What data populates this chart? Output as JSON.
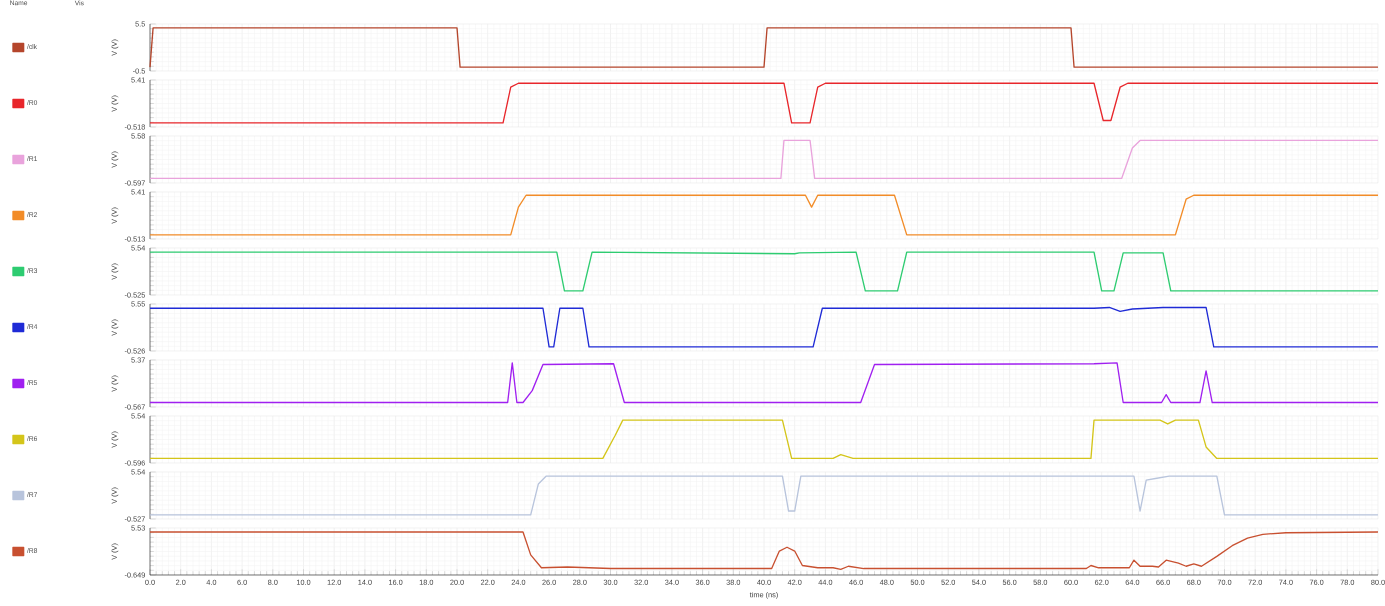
{
  "chart_data": [
    {
      "type": "line",
      "ylabel": "V (V)",
      "legend_title": "Name",
      "annotations": [
        "Vis"
      ],
      "legend": "left",
      "grid": true,
      "tick_labels": "y",
      "xlim": [
        0,
        80
      ],
      "ylim": [
        -0.5,
        5.5
      ],
      "yticks": [
        -0.5,
        5.5
      ],
      "xticks": [
        0,
        2,
        4,
        6,
        8,
        10,
        12,
        14,
        16,
        18,
        20,
        22,
        24,
        26,
        28,
        30,
        32,
        34,
        36,
        38,
        40,
        42,
        44,
        46,
        48,
        50,
        52,
        54,
        56,
        58,
        60,
        62,
        64,
        66,
        68,
        70,
        72,
        74,
        76,
        78,
        80
      ],
      "series": [
        {
          "name": "/clk",
          "color": "#b5462c",
          "x": [
            0,
            0.2,
            20,
            20.2,
            40,
            40.2,
            60,
            60.2,
            80
          ],
          "values": [
            0,
            5,
            5,
            0,
            0,
            5,
            5,
            0,
            0
          ]
        }
      ]
    },
    {
      "type": "line",
      "ylabel": "V (V)",
      "legend": "left",
      "grid": true,
      "tick_labels": "y",
      "xlim": [
        0,
        80
      ],
      "ylim": [
        -0.518,
        5.41
      ],
      "yticks": [
        -0.518,
        5.41
      ],
      "xticks": [
        0,
        2,
        4,
        6,
        8,
        10,
        12,
        14,
        16,
        18,
        20,
        22,
        24,
        26,
        28,
        30,
        32,
        34,
        36,
        38,
        40,
        42,
        44,
        46,
        48,
        50,
        52,
        54,
        56,
        58,
        60,
        62,
        64,
        66,
        68,
        70,
        72,
        74,
        76,
        78,
        80
      ],
      "series": [
        {
          "name": "/R0",
          "color": "#e8262b",
          "x": [
            0,
            23,
            23.5,
            24,
            41.3,
            41.8,
            43,
            43.5,
            44,
            61.5,
            62.1,
            62.6,
            63.2,
            63.7,
            80
          ],
          "values": [
            0,
            0,
            4.5,
            5,
            5,
            0,
            0,
            4.5,
            5,
            5,
            0.3,
            0.3,
            4.5,
            5,
            5
          ]
        }
      ]
    },
    {
      "type": "line",
      "ylabel": "V (V)",
      "legend": "left",
      "grid": true,
      "tick_labels": "y",
      "xlim": [
        0,
        80
      ],
      "ylim": [
        -0.597,
        5.58
      ],
      "yticks": [
        -0.597,
        5.58
      ],
      "xticks": [
        0,
        2,
        4,
        6,
        8,
        10,
        12,
        14,
        16,
        18,
        20,
        22,
        24,
        26,
        28,
        30,
        32,
        34,
        36,
        38,
        40,
        42,
        44,
        46,
        48,
        50,
        52,
        54,
        56,
        58,
        60,
        62,
        64,
        66,
        68,
        70,
        72,
        74,
        76,
        78,
        80
      ],
      "series": [
        {
          "name": "/R1",
          "color": "#e9a3dc",
          "x": [
            0,
            41.1,
            41.3,
            43.0,
            43.3,
            63.3,
            64.0,
            64.5,
            80
          ],
          "values": [
            0,
            0,
            5,
            5,
            0,
            0,
            4,
            5,
            5
          ]
        }
      ]
    },
    {
      "type": "line",
      "ylabel": "V (V)",
      "legend": "left",
      "grid": true,
      "tick_labels": "y",
      "xlim": [
        0,
        80
      ],
      "ylim": [
        -0.513,
        5.41
      ],
      "yticks": [
        -0.513,
        5.41
      ],
      "xticks": [
        0,
        2,
        4,
        6,
        8,
        10,
        12,
        14,
        16,
        18,
        20,
        22,
        24,
        26,
        28,
        30,
        32,
        34,
        36,
        38,
        40,
        42,
        44,
        46,
        48,
        50,
        52,
        54,
        56,
        58,
        60,
        62,
        64,
        66,
        68,
        70,
        72,
        74,
        76,
        78,
        80
      ],
      "series": [
        {
          "name": "/R2",
          "color": "#f28c28",
          "x": [
            0,
            23.5,
            24,
            24.5,
            42.7,
            43.1,
            43.5,
            48.5,
            49.3,
            66.8,
            67.5,
            68,
            80
          ],
          "values": [
            0,
            0,
            3.5,
            5,
            5,
            3.5,
            5,
            5,
            0,
            0,
            4.5,
            5,
            5
          ]
        }
      ]
    },
    {
      "type": "line",
      "ylabel": "V (V)",
      "legend": "left",
      "grid": true,
      "tick_labels": "y",
      "xlim": [
        0,
        80
      ],
      "ylim": [
        -0.525,
        5.54
      ],
      "yticks": [
        -0.525,
        5.54
      ],
      "xticks": [
        0,
        2,
        4,
        6,
        8,
        10,
        12,
        14,
        16,
        18,
        20,
        22,
        24,
        26,
        28,
        30,
        32,
        34,
        36,
        38,
        40,
        42,
        44,
        46,
        48,
        50,
        52,
        54,
        56,
        58,
        60,
        62,
        64,
        66,
        68,
        70,
        72,
        74,
        76,
        78,
        80
      ],
      "series": [
        {
          "name": "/R3",
          "color": "#2ecc71",
          "x": [
            0,
            26.5,
            27,
            28.2,
            28.8,
            42,
            42.3,
            46,
            46.6,
            48.7,
            49.3,
            61.5,
            62,
            62.8,
            63.4,
            66,
            66.5,
            80
          ],
          "values": [
            5,
            5,
            0,
            0,
            5,
            4.8,
            4.9,
            5,
            0,
            0,
            5,
            5,
            0,
            0,
            4.9,
            4.9,
            0,
            0
          ]
        }
      ]
    },
    {
      "type": "line",
      "ylabel": "V (V)",
      "legend": "left",
      "grid": true,
      "tick_labels": "y",
      "xlim": [
        0,
        80
      ],
      "ylim": [
        -0.526,
        5.55
      ],
      "yticks": [
        -0.526,
        5.55
      ],
      "xticks": [
        0,
        2,
        4,
        6,
        8,
        10,
        12,
        14,
        16,
        18,
        20,
        22,
        24,
        26,
        28,
        30,
        32,
        34,
        36,
        38,
        40,
        42,
        44,
        46,
        48,
        50,
        52,
        54,
        56,
        58,
        60,
        62,
        64,
        66,
        68,
        70,
        72,
        74,
        76,
        78,
        80
      ],
      "series": [
        {
          "name": "/R4",
          "color": "#1f2bd6",
          "x": [
            0,
            25.6,
            26,
            26.3,
            26.7,
            28.2,
            28.6,
            43.2,
            43.8,
            61.5,
            62.5,
            63.2,
            64,
            66,
            68.8,
            69.3,
            80
          ],
          "values": [
            5,
            5,
            0,
            0,
            5,
            5,
            0,
            0,
            5,
            5,
            5.1,
            4.6,
            4.9,
            5.1,
            5.1,
            0,
            0
          ]
        }
      ]
    },
    {
      "type": "line",
      "ylabel": "V (V)",
      "legend": "left",
      "grid": true,
      "tick_labels": "y",
      "xlim": [
        0,
        80
      ],
      "ylim": [
        -0.567,
        5.37
      ],
      "yticks": [
        -0.567,
        5.37
      ],
      "xticks": [
        0,
        2,
        4,
        6,
        8,
        10,
        12,
        14,
        16,
        18,
        20,
        22,
        24,
        26,
        28,
        30,
        32,
        34,
        36,
        38,
        40,
        42,
        44,
        46,
        48,
        50,
        52,
        54,
        56,
        58,
        60,
        62,
        64,
        66,
        68,
        70,
        72,
        74,
        76,
        78,
        80
      ],
      "series": [
        {
          "name": "/R5",
          "color": "#a020f0",
          "x": [
            0,
            23.3,
            23.6,
            23.9,
            24.3,
            24.9,
            25.6,
            30.2,
            30.9,
            46.3,
            47.2,
            61.5,
            63.0,
            63.4,
            65.9,
            66.2,
            66.5,
            68.4,
            68.8,
            69.2,
            80
          ],
          "values": [
            0,
            0,
            5,
            0,
            0,
            1.5,
            4.8,
            4.9,
            0,
            0,
            4.8,
            4.9,
            5,
            0,
            0,
            1,
            0,
            0,
            4,
            0,
            0
          ]
        }
      ]
    },
    {
      "type": "line",
      "ylabel": "V (V)",
      "legend": "left",
      "grid": true,
      "tick_labels": "y",
      "xlim": [
        0,
        80
      ],
      "ylim": [
        -0.596,
        5.54
      ],
      "yticks": [
        -0.596,
        5.54
      ],
      "xticks": [
        0,
        2,
        4,
        6,
        8,
        10,
        12,
        14,
        16,
        18,
        20,
        22,
        24,
        26,
        28,
        30,
        32,
        34,
        36,
        38,
        40,
        42,
        44,
        46,
        48,
        50,
        52,
        54,
        56,
        58,
        60,
        62,
        64,
        66,
        68,
        70,
        72,
        74,
        76,
        78,
        80
      ],
      "series": [
        {
          "name": "/R6",
          "color": "#d4c51a",
          "x": [
            0,
            29.5,
            30.3,
            30.8,
            41.2,
            41.8,
            44.5,
            45,
            45.8,
            61.3,
            61.5,
            65.8,
            66.3,
            66.8,
            68.3,
            68.8,
            69.5,
            80
          ],
          "values": [
            0,
            0,
            3,
            5,
            5,
            0,
            0,
            0.5,
            0,
            0,
            5,
            5,
            4.5,
            5,
            5,
            1.5,
            0,
            0
          ]
        }
      ]
    },
    {
      "type": "line",
      "ylabel": "V (V)",
      "legend": "left",
      "grid": true,
      "tick_labels": "y",
      "xlim": [
        0,
        80
      ],
      "ylim": [
        -0.527,
        5.54
      ],
      "yticks": [
        -0.527,
        5.54
      ],
      "xticks": [
        0,
        2,
        4,
        6,
        8,
        10,
        12,
        14,
        16,
        18,
        20,
        22,
        24,
        26,
        28,
        30,
        32,
        34,
        36,
        38,
        40,
        42,
        44,
        46,
        48,
        50,
        52,
        54,
        56,
        58,
        60,
        62,
        64,
        66,
        68,
        70,
        72,
        74,
        76,
        78,
        80
      ],
      "series": [
        {
          "name": "/R7",
          "color": "#b8c4dc",
          "x": [
            0,
            24.8,
            25.3,
            25.8,
            41.2,
            41.6,
            42,
            42.4,
            64.1,
            64.5,
            64.9,
            65.5,
            66.4,
            69.5,
            70,
            80
          ],
          "values": [
            0,
            0,
            4,
            5,
            5,
            0.5,
            0.5,
            5,
            5,
            0.5,
            4.5,
            4.7,
            5,
            5,
            0,
            0
          ]
        }
      ]
    },
    {
      "type": "line",
      "ylabel": "V (V)",
      "xlabel": "time (ns)",
      "legend": "left",
      "grid": true,
      "xlim": [
        0,
        80
      ],
      "ylim": [
        -0.649,
        5.53
      ],
      "yticks": [
        -0.649,
        5.53
      ],
      "xticks": [
        {
          "value": 0,
          "label": "0.0"
        },
        {
          "value": 2,
          "label": "2.0"
        },
        {
          "value": 4,
          "label": "4.0"
        },
        {
          "value": 6,
          "label": "6.0"
        },
        {
          "value": 8,
          "label": "8.0"
        },
        {
          "value": 10,
          "label": "10.0"
        },
        {
          "value": 12,
          "label": "12.0"
        },
        {
          "value": 14,
          "label": "14.0"
        },
        {
          "value": 16,
          "label": "16.0"
        },
        {
          "value": 18,
          "label": "18.0"
        },
        {
          "value": 20,
          "label": "20.0"
        },
        {
          "value": 22,
          "label": "22.0"
        },
        {
          "value": 24,
          "label": "24.0"
        },
        {
          "value": 26,
          "label": "26.0"
        },
        {
          "value": 28,
          "label": "28.0"
        },
        {
          "value": 30,
          "label": "30.0"
        },
        {
          "value": 32,
          "label": "32.0"
        },
        {
          "value": 34,
          "label": "34.0"
        },
        {
          "value": 36,
          "label": "36.0"
        },
        {
          "value": 38,
          "label": "38.0"
        },
        {
          "value": 40,
          "label": "40.0"
        },
        {
          "value": 42,
          "label": "42.0"
        },
        {
          "value": 44,
          "label": "44.0"
        },
        {
          "value": 46,
          "label": "46.0"
        },
        {
          "value": 48,
          "label": "48.0"
        },
        {
          "value": 50,
          "label": "50.0"
        },
        {
          "value": 52,
          "label": "52.0"
        },
        {
          "value": 54,
          "label": "54.0"
        },
        {
          "value": 56,
          "label": "56.0"
        },
        {
          "value": 58,
          "label": "58.0"
        },
        {
          "value": 60,
          "label": "60.0"
        },
        {
          "value": 62,
          "label": "62.0"
        },
        {
          "value": 64,
          "label": "64.0"
        },
        {
          "value": 66,
          "label": "66.0"
        },
        {
          "value": 68,
          "label": "68.0"
        },
        {
          "value": 70,
          "label": "70.0"
        },
        {
          "value": 72,
          "label": "72.0"
        },
        {
          "value": 74,
          "label": "74.0"
        },
        {
          "value": 76,
          "label": "76.0"
        },
        {
          "value": 78,
          "label": "78.0"
        },
        {
          "value": 80,
          "label": "80.0"
        }
      ],
      "series": [
        {
          "name": "/R8",
          "color": "#c85030",
          "x": [
            0,
            24.3,
            24.8,
            25.5,
            27.2,
            30,
            40.5,
            41,
            41.5,
            42,
            42.5,
            43.5,
            44.5,
            45,
            45.5,
            46.5,
            61,
            61.3,
            61.8,
            63.8,
            64.1,
            64.5,
            65.3,
            65.7,
            66.2,
            67,
            67.5,
            68,
            68.5,
            69.5,
            70.5,
            71.5,
            72.5,
            74,
            80
          ],
          "values": [
            5,
            5,
            2,
            0.3,
            0.4,
            0.2,
            0.2,
            2.5,
            3,
            2.5,
            0.6,
            0.3,
            0.3,
            0.1,
            0.5,
            0.2,
            0.2,
            0.6,
            0.3,
            0.3,
            1.3,
            0.5,
            0.5,
            0.4,
            1.3,
            0.9,
            0.5,
            0.8,
            0.5,
            1.8,
            3.2,
            4.2,
            4.7,
            4.9,
            5
          ]
        }
      ]
    }
  ]
}
